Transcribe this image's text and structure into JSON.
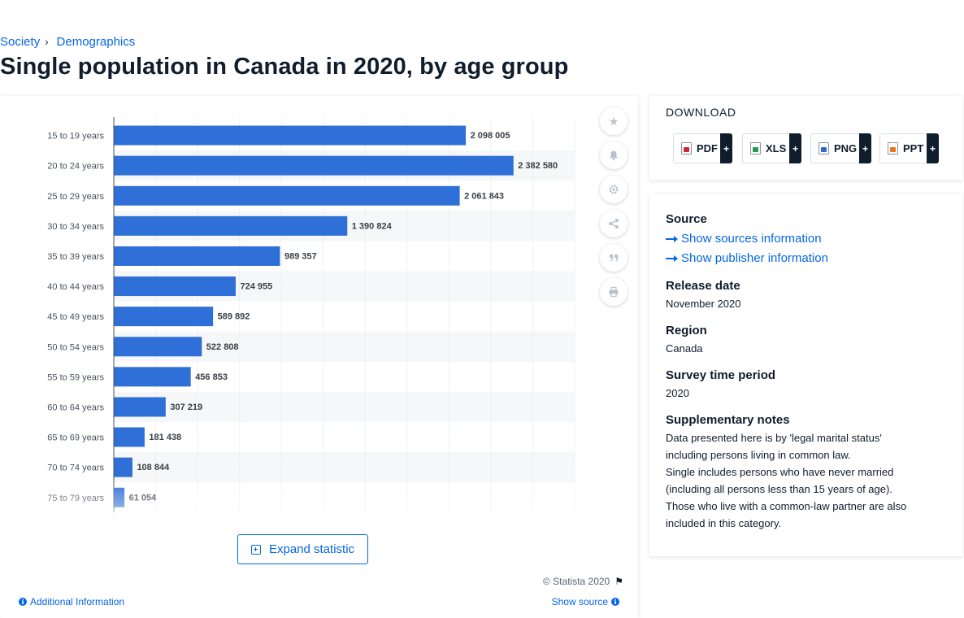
{
  "breadcrumb": {
    "items": [
      "Society",
      "Demographics"
    ],
    "separator": "›"
  },
  "title": "Single population in Canada in 2020, by age group",
  "chart_data": {
    "type": "bar",
    "orientation": "horizontal",
    "categories": [
      "15 to 19 years",
      "20 to 24 years",
      "25 to 29 years",
      "30 to 34 years",
      "35 to 39 years",
      "40 to 44 years",
      "45 to 49 years",
      "50 to 54 years",
      "55 to 59 years",
      "60 to 64 years",
      "65 to 69 years",
      "70 to 74 years",
      "75 to 79 years"
    ],
    "values": [
      2098005,
      2382580,
      2061843,
      1390824,
      989357,
      724955,
      589892,
      522808,
      456853,
      307219,
      181438,
      108844,
      61054
    ],
    "value_labels": [
      "2 098 005",
      "2 382 580",
      "2 061 843",
      "1 390 824",
      "989 357",
      "724 955",
      "589 892",
      "522 808",
      "456 853",
      "307 219",
      "181 438",
      "108 844",
      "61 054"
    ],
    "xlim": [
      0,
      2750000
    ],
    "grid": true,
    "bar_color": "#2f6fd8"
  },
  "tools": [
    "star-icon",
    "bell-icon",
    "gear-icon",
    "share-icon",
    "quote-icon",
    "print-icon"
  ],
  "expand_label": "Expand statistic",
  "copyright": "© Statista 2020",
  "additional_info": "Additional Information",
  "show_source": "Show source",
  "download": {
    "title": "DOWNLOAD",
    "buttons": [
      {
        "label": "PDF",
        "icon": "pdf-icon"
      },
      {
        "label": "XLS",
        "icon": "xls-icon"
      },
      {
        "label": "PNG",
        "icon": "png-icon"
      },
      {
        "label": "PPT",
        "icon": "ppt-icon"
      }
    ],
    "plus": "+"
  },
  "info": {
    "source_heading": "Source",
    "show_sources": "Show sources information",
    "show_publisher": "Show publisher information",
    "release_heading": "Release date",
    "release_value": "November 2020",
    "region_heading": "Region",
    "region_value": "Canada",
    "period_heading": "Survey time period",
    "period_value": "2020",
    "notes_heading": "Supplementary notes",
    "notes_lines": [
      "Data presented here is by 'legal marital status'",
      "including persons living in common law.",
      "Single includes persons who have never married",
      "(including all persons less than 15 years of age).",
      "Those who live with a common-law partner are also",
      "included in this category."
    ]
  },
  "colors": {
    "accent": "#0666e5",
    "bar": "#2f6fd8",
    "text": "#0f1d2c"
  }
}
